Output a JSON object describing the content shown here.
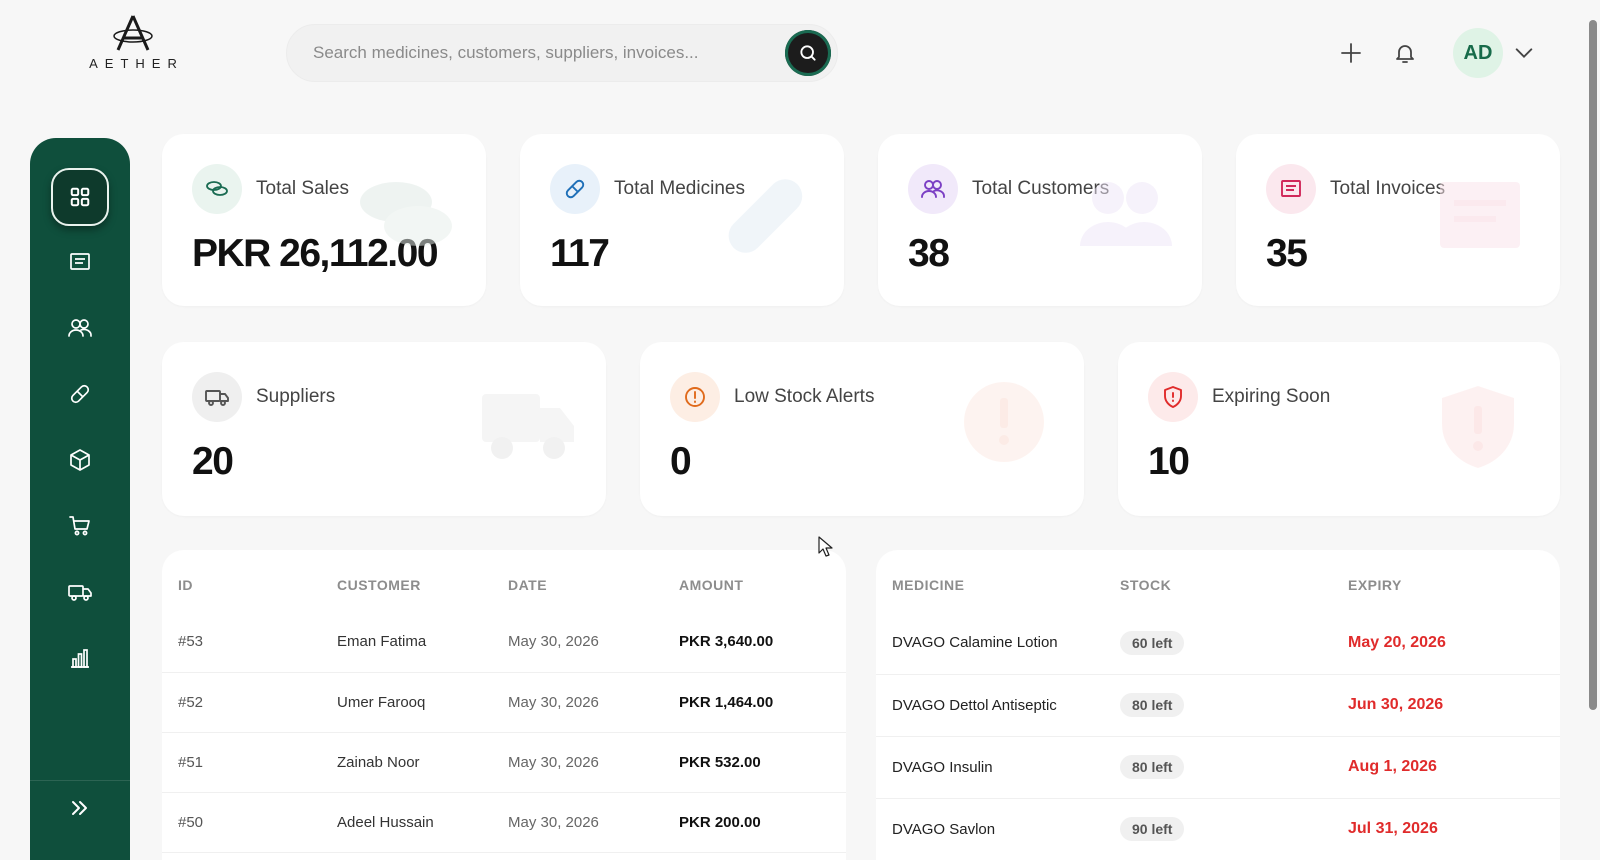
{
  "brand": {
    "name": "AETHER"
  },
  "search": {
    "placeholder": "Search medicines, customers, suppliers, invoices..."
  },
  "header": {
    "avatar_initials": "AD"
  },
  "sidebar": {
    "items": [
      {
        "icon": "grid-icon",
        "active": true
      },
      {
        "icon": "invoice-icon"
      },
      {
        "icon": "users-icon"
      },
      {
        "icon": "pill-icon"
      },
      {
        "icon": "box-icon"
      },
      {
        "icon": "cart-icon"
      },
      {
        "icon": "truck-icon"
      },
      {
        "icon": "bar-chart-icon"
      }
    ],
    "expand_icon": "chevrons-right-icon"
  },
  "stats_top": [
    {
      "label": "Total Sales",
      "value": "PKR 26,112.00",
      "icon": "coins-icon",
      "color": "#1a6b52"
    },
    {
      "label": "Total Medicines",
      "value": "117",
      "icon": "pill-icon",
      "color": "#1e6fb8"
    },
    {
      "label": "Total Customers",
      "value": "38",
      "icon": "users-icon",
      "color": "#7b3fc4"
    },
    {
      "label": "Total Invoices",
      "value": "35",
      "icon": "invoice-icon",
      "color": "#d1285a"
    }
  ],
  "stats_bottom": [
    {
      "label": "Suppliers",
      "value": "20",
      "icon": "truck-icon",
      "color": "#555555"
    },
    {
      "label": "Low Stock Alerts",
      "value": "0",
      "icon": "alert-circle-icon",
      "color": "#e06a1b"
    },
    {
      "label": "Expiring Soon",
      "value": "10",
      "icon": "shield-alert-icon",
      "color": "#e02b2b"
    }
  ],
  "invoices": {
    "columns": [
      "ID",
      "CUSTOMER",
      "DATE",
      "AMOUNT"
    ],
    "rows": [
      {
        "id": "#53",
        "customer": "Eman Fatima",
        "date": "May 30, 2026",
        "amount": "PKR 3,640.00"
      },
      {
        "id": "#52",
        "customer": "Umer Farooq",
        "date": "May 30, 2026",
        "amount": "PKR 1,464.00"
      },
      {
        "id": "#51",
        "customer": "Zainab Noor",
        "date": "May 30, 2026",
        "amount": "PKR 532.00"
      },
      {
        "id": "#50",
        "customer": "Adeel Hussain",
        "date": "May 30, 2026",
        "amount": "PKR 200.00"
      }
    ]
  },
  "expiring": {
    "columns": [
      "MEDICINE",
      "STOCK",
      "EXPIRY"
    ],
    "rows": [
      {
        "medicine": "DVAGO Calamine Lotion",
        "stock": "60 left",
        "expiry": "May 20, 2026"
      },
      {
        "medicine": "DVAGO Dettol Antiseptic",
        "stock": "80 left",
        "expiry": "Jun 30, 2026"
      },
      {
        "medicine": "DVAGO Insulin",
        "stock": "80 left",
        "expiry": "Aug 1, 2026"
      },
      {
        "medicine": "DVAGO Savlon",
        "stock": "90 left",
        "expiry": "Jul 31, 2026"
      }
    ]
  }
}
